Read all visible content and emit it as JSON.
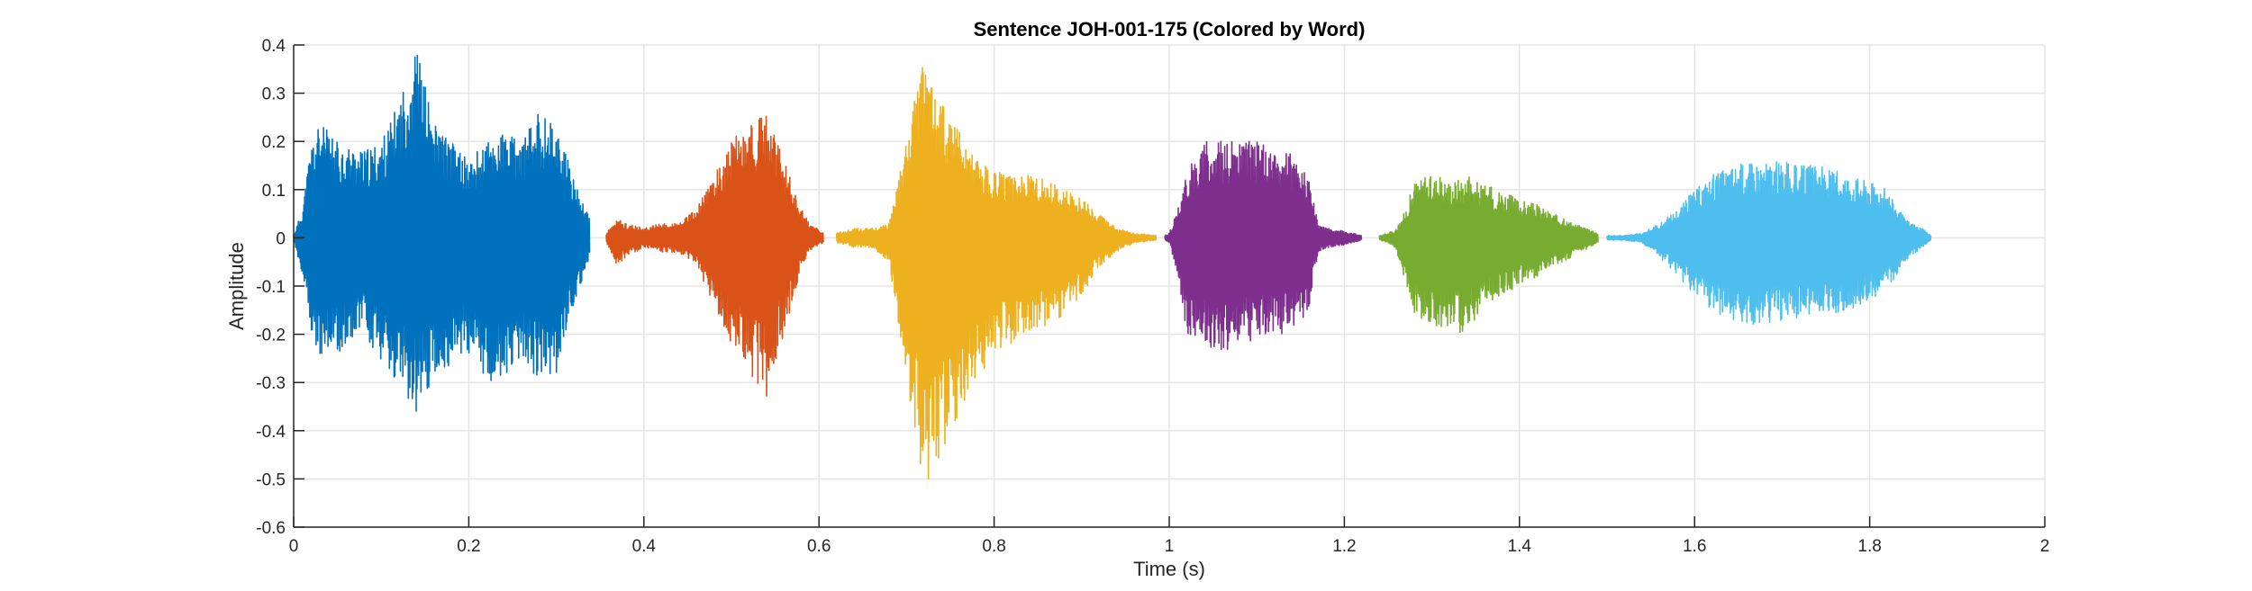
{
  "chart_data": {
    "type": "line",
    "title": "Sentence JOH-001-175 (Colored by Word)",
    "xlabel": "Time (s)",
    "ylabel": "Amplitude",
    "xlim": [
      0,
      2
    ],
    "ylim": [
      -0.6,
      0.4
    ],
    "xticks": [
      0,
      0.2,
      0.4,
      0.6,
      0.8,
      1,
      1.2,
      1.4,
      1.6,
      1.8,
      2
    ],
    "yticks": [
      -0.6,
      -0.5,
      -0.4,
      -0.3,
      -0.2,
      -0.1,
      0,
      0.1,
      0.2,
      0.3,
      0.4
    ],
    "xtick_labels": [
      "0",
      "0.2",
      "0.4",
      "0.6",
      "0.8",
      "1",
      "1.2",
      "1.4",
      "1.6",
      "1.8",
      "2"
    ],
    "ytick_labels": [
      "-0.6",
      "-0.5",
      "-0.4",
      "-0.3",
      "-0.2",
      "-0.1",
      "0",
      "0.1",
      "0.2",
      "0.3",
      "0.4"
    ],
    "grid": true,
    "legend": "none",
    "series": [
      {
        "color": "#0072BD",
        "start": 0.0,
        "end": 0.338,
        "envelope_x": [
          0.0,
          0.01,
          0.02,
          0.03,
          0.05,
          0.08,
          0.1,
          0.12,
          0.14,
          0.16,
          0.18,
          0.2,
          0.22,
          0.24,
          0.26,
          0.28,
          0.3,
          0.32,
          0.338
        ],
        "envelope_max": [
          0.005,
          0.06,
          0.2,
          0.24,
          0.2,
          0.18,
          0.2,
          0.28,
          0.4,
          0.24,
          0.2,
          0.16,
          0.2,
          0.22,
          0.2,
          0.26,
          0.24,
          0.12,
          0.04
        ],
        "envelope_min": [
          -0.005,
          -0.08,
          -0.2,
          -0.26,
          -0.24,
          -0.2,
          -0.26,
          -0.3,
          -0.38,
          -0.3,
          -0.26,
          -0.24,
          -0.3,
          -0.3,
          -0.26,
          -0.3,
          -0.28,
          -0.14,
          -0.04
        ]
      },
      {
        "color": "#D95319",
        "start": 0.357,
        "end": 0.605,
        "envelope_x": [
          0.357,
          0.37,
          0.38,
          0.4,
          0.42,
          0.44,
          0.46,
          0.48,
          0.5,
          0.52,
          0.54,
          0.56,
          0.58,
          0.59,
          0.605
        ],
        "envelope_max": [
          0.01,
          0.04,
          0.03,
          0.02,
          0.03,
          0.03,
          0.06,
          0.13,
          0.2,
          0.24,
          0.26,
          0.16,
          0.06,
          0.03,
          0.01
        ],
        "envelope_min": [
          -0.01,
          -0.06,
          -0.04,
          -0.02,
          -0.03,
          -0.03,
          -0.06,
          -0.14,
          -0.22,
          -0.28,
          -0.33,
          -0.2,
          -0.06,
          -0.03,
          -0.01
        ]
      },
      {
        "color": "#EDB120",
        "start": 0.62,
        "end": 0.985,
        "envelope_x": [
          0.62,
          0.64,
          0.66,
          0.68,
          0.7,
          0.72,
          0.74,
          0.76,
          0.78,
          0.8,
          0.82,
          0.84,
          0.86,
          0.88,
          0.9,
          0.92,
          0.94,
          0.96,
          0.985
        ],
        "envelope_max": [
          0.01,
          0.02,
          0.02,
          0.03,
          0.2,
          0.39,
          0.28,
          0.22,
          0.16,
          0.14,
          0.13,
          0.13,
          0.12,
          0.1,
          0.08,
          0.05,
          0.02,
          0.01,
          0.005
        ],
        "envelope_min": [
          -0.01,
          -0.02,
          -0.02,
          -0.05,
          -0.3,
          -0.52,
          -0.46,
          -0.36,
          -0.3,
          -0.24,
          -0.22,
          -0.2,
          -0.18,
          -0.16,
          -0.12,
          -0.06,
          -0.03,
          -0.01,
          -0.005
        ]
      },
      {
        "color": "#7E2F8E",
        "start": 0.995,
        "end": 1.22,
        "envelope_x": [
          0.995,
          1.0,
          1.01,
          1.02,
          1.04,
          1.06,
          1.08,
          1.1,
          1.12,
          1.14,
          1.16,
          1.17,
          1.18,
          1.2,
          1.22
        ],
        "envelope_max": [
          0.005,
          0.01,
          0.06,
          0.14,
          0.2,
          0.2,
          0.2,
          0.2,
          0.18,
          0.18,
          0.12,
          0.03,
          0.02,
          0.015,
          0.005
        ],
        "envelope_min": [
          -0.005,
          -0.01,
          -0.08,
          -0.2,
          -0.22,
          -0.24,
          -0.22,
          -0.21,
          -0.2,
          -0.2,
          -0.15,
          -0.03,
          -0.02,
          -0.015,
          -0.005
        ]
      },
      {
        "color": "#77AC30",
        "start": 1.24,
        "end": 1.49,
        "envelope_x": [
          1.24,
          1.25,
          1.26,
          1.27,
          1.28,
          1.3,
          1.32,
          1.34,
          1.36,
          1.38,
          1.4,
          1.42,
          1.44,
          1.46,
          1.48,
          1.49
        ],
        "envelope_max": [
          0.005,
          0.01,
          0.02,
          0.06,
          0.12,
          0.13,
          0.12,
          0.13,
          0.11,
          0.1,
          0.08,
          0.07,
          0.05,
          0.03,
          0.02,
          0.01
        ],
        "envelope_min": [
          -0.005,
          -0.01,
          -0.03,
          -0.1,
          -0.16,
          -0.18,
          -0.19,
          -0.2,
          -0.14,
          -0.12,
          -0.1,
          -0.08,
          -0.06,
          -0.04,
          -0.02,
          -0.01
        ]
      },
      {
        "color": "#4DBEEE",
        "start": 1.5,
        "end": 1.87,
        "envelope_x": [
          1.5,
          1.52,
          1.54,
          1.56,
          1.58,
          1.6,
          1.62,
          1.64,
          1.66,
          1.68,
          1.7,
          1.72,
          1.74,
          1.76,
          1.78,
          1.8,
          1.82,
          1.84,
          1.86,
          1.87
        ],
        "envelope_max": [
          0.005,
          0.005,
          0.01,
          0.03,
          0.06,
          0.1,
          0.13,
          0.15,
          0.16,
          0.16,
          0.16,
          0.15,
          0.15,
          0.14,
          0.13,
          0.12,
          0.1,
          0.04,
          0.02,
          0.005
        ],
        "envelope_min": [
          -0.005,
          -0.005,
          -0.01,
          -0.04,
          -0.08,
          -0.12,
          -0.15,
          -0.17,
          -0.18,
          -0.18,
          -0.17,
          -0.17,
          -0.16,
          -0.16,
          -0.15,
          -0.13,
          -0.11,
          -0.05,
          -0.02,
          -0.005
        ]
      }
    ]
  }
}
